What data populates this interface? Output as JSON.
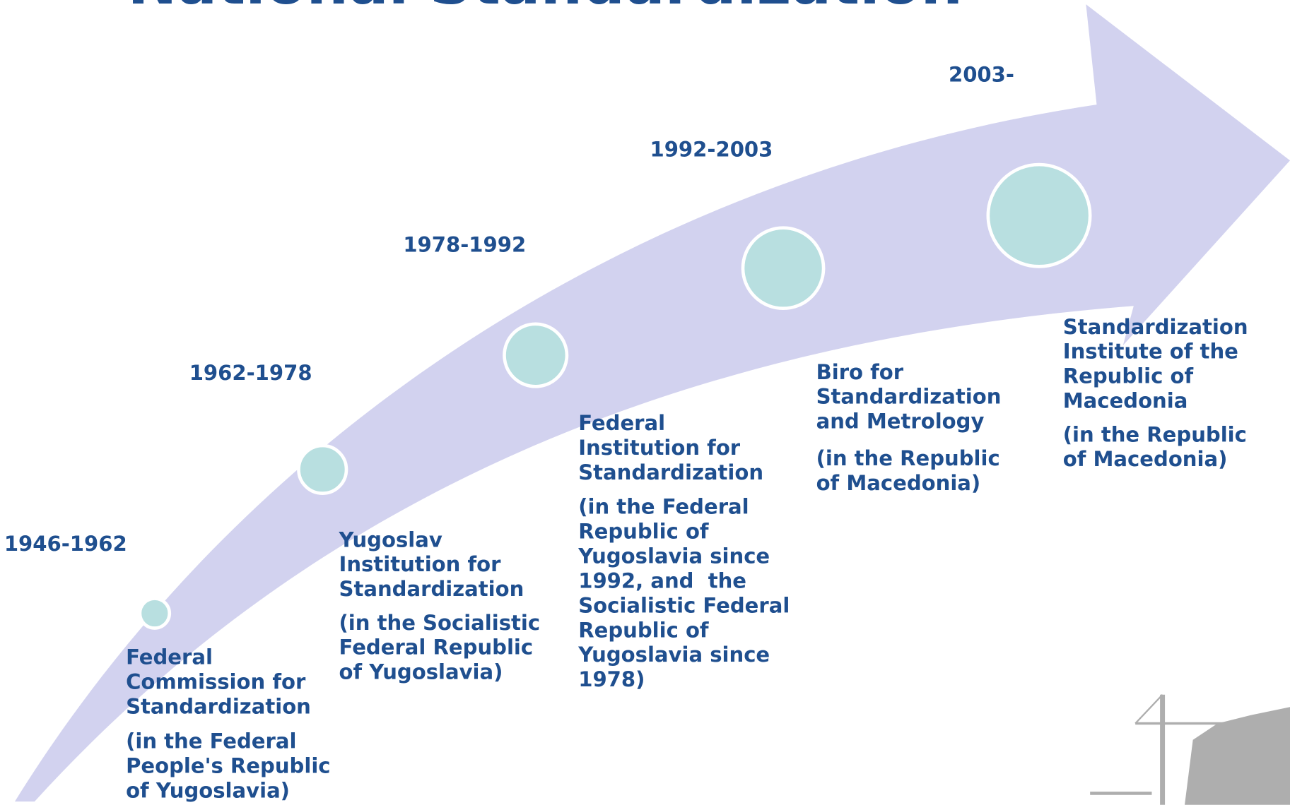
{
  "title": "National Standardization",
  "periods": [
    {
      "year": "1946-1962",
      "name": [
        "Federal",
        "Commission for",
        "Standardization"
      ],
      "note": [
        "(in the Federal",
        "People's Republic",
        "of Yugoslavia)"
      ]
    },
    {
      "year": "1962-1978",
      "name": [
        "Yugoslav",
        "Institution for",
        "Standardization"
      ],
      "note": [
        "(in the Socialistic",
        "Federal Republic",
        "of Yugoslavia)"
      ]
    },
    {
      "year": "1978-1992",
      "name": [
        "Federal",
        "Institution for",
        "Standardization"
      ],
      "note": [
        "(in the Federal",
        "Republic of",
        "Yugoslavia since",
        "1992, and  the",
        "Socialistic Federal",
        "Republic of",
        "Yugoslavia since",
        "1978)"
      ]
    },
    {
      "year": "1992-2003",
      "name": [
        "Biro for",
        "Standardization",
        "and Metrology"
      ],
      "note": [
        "(in the Republic",
        "of Macedonia)"
      ]
    },
    {
      "year": "2003-",
      "name": [
        "Standardization",
        "Institute of the",
        "Republic of",
        "Macedonia"
      ],
      "note": [
        "(in the Republic",
        "of Macedonia)"
      ]
    }
  ]
}
